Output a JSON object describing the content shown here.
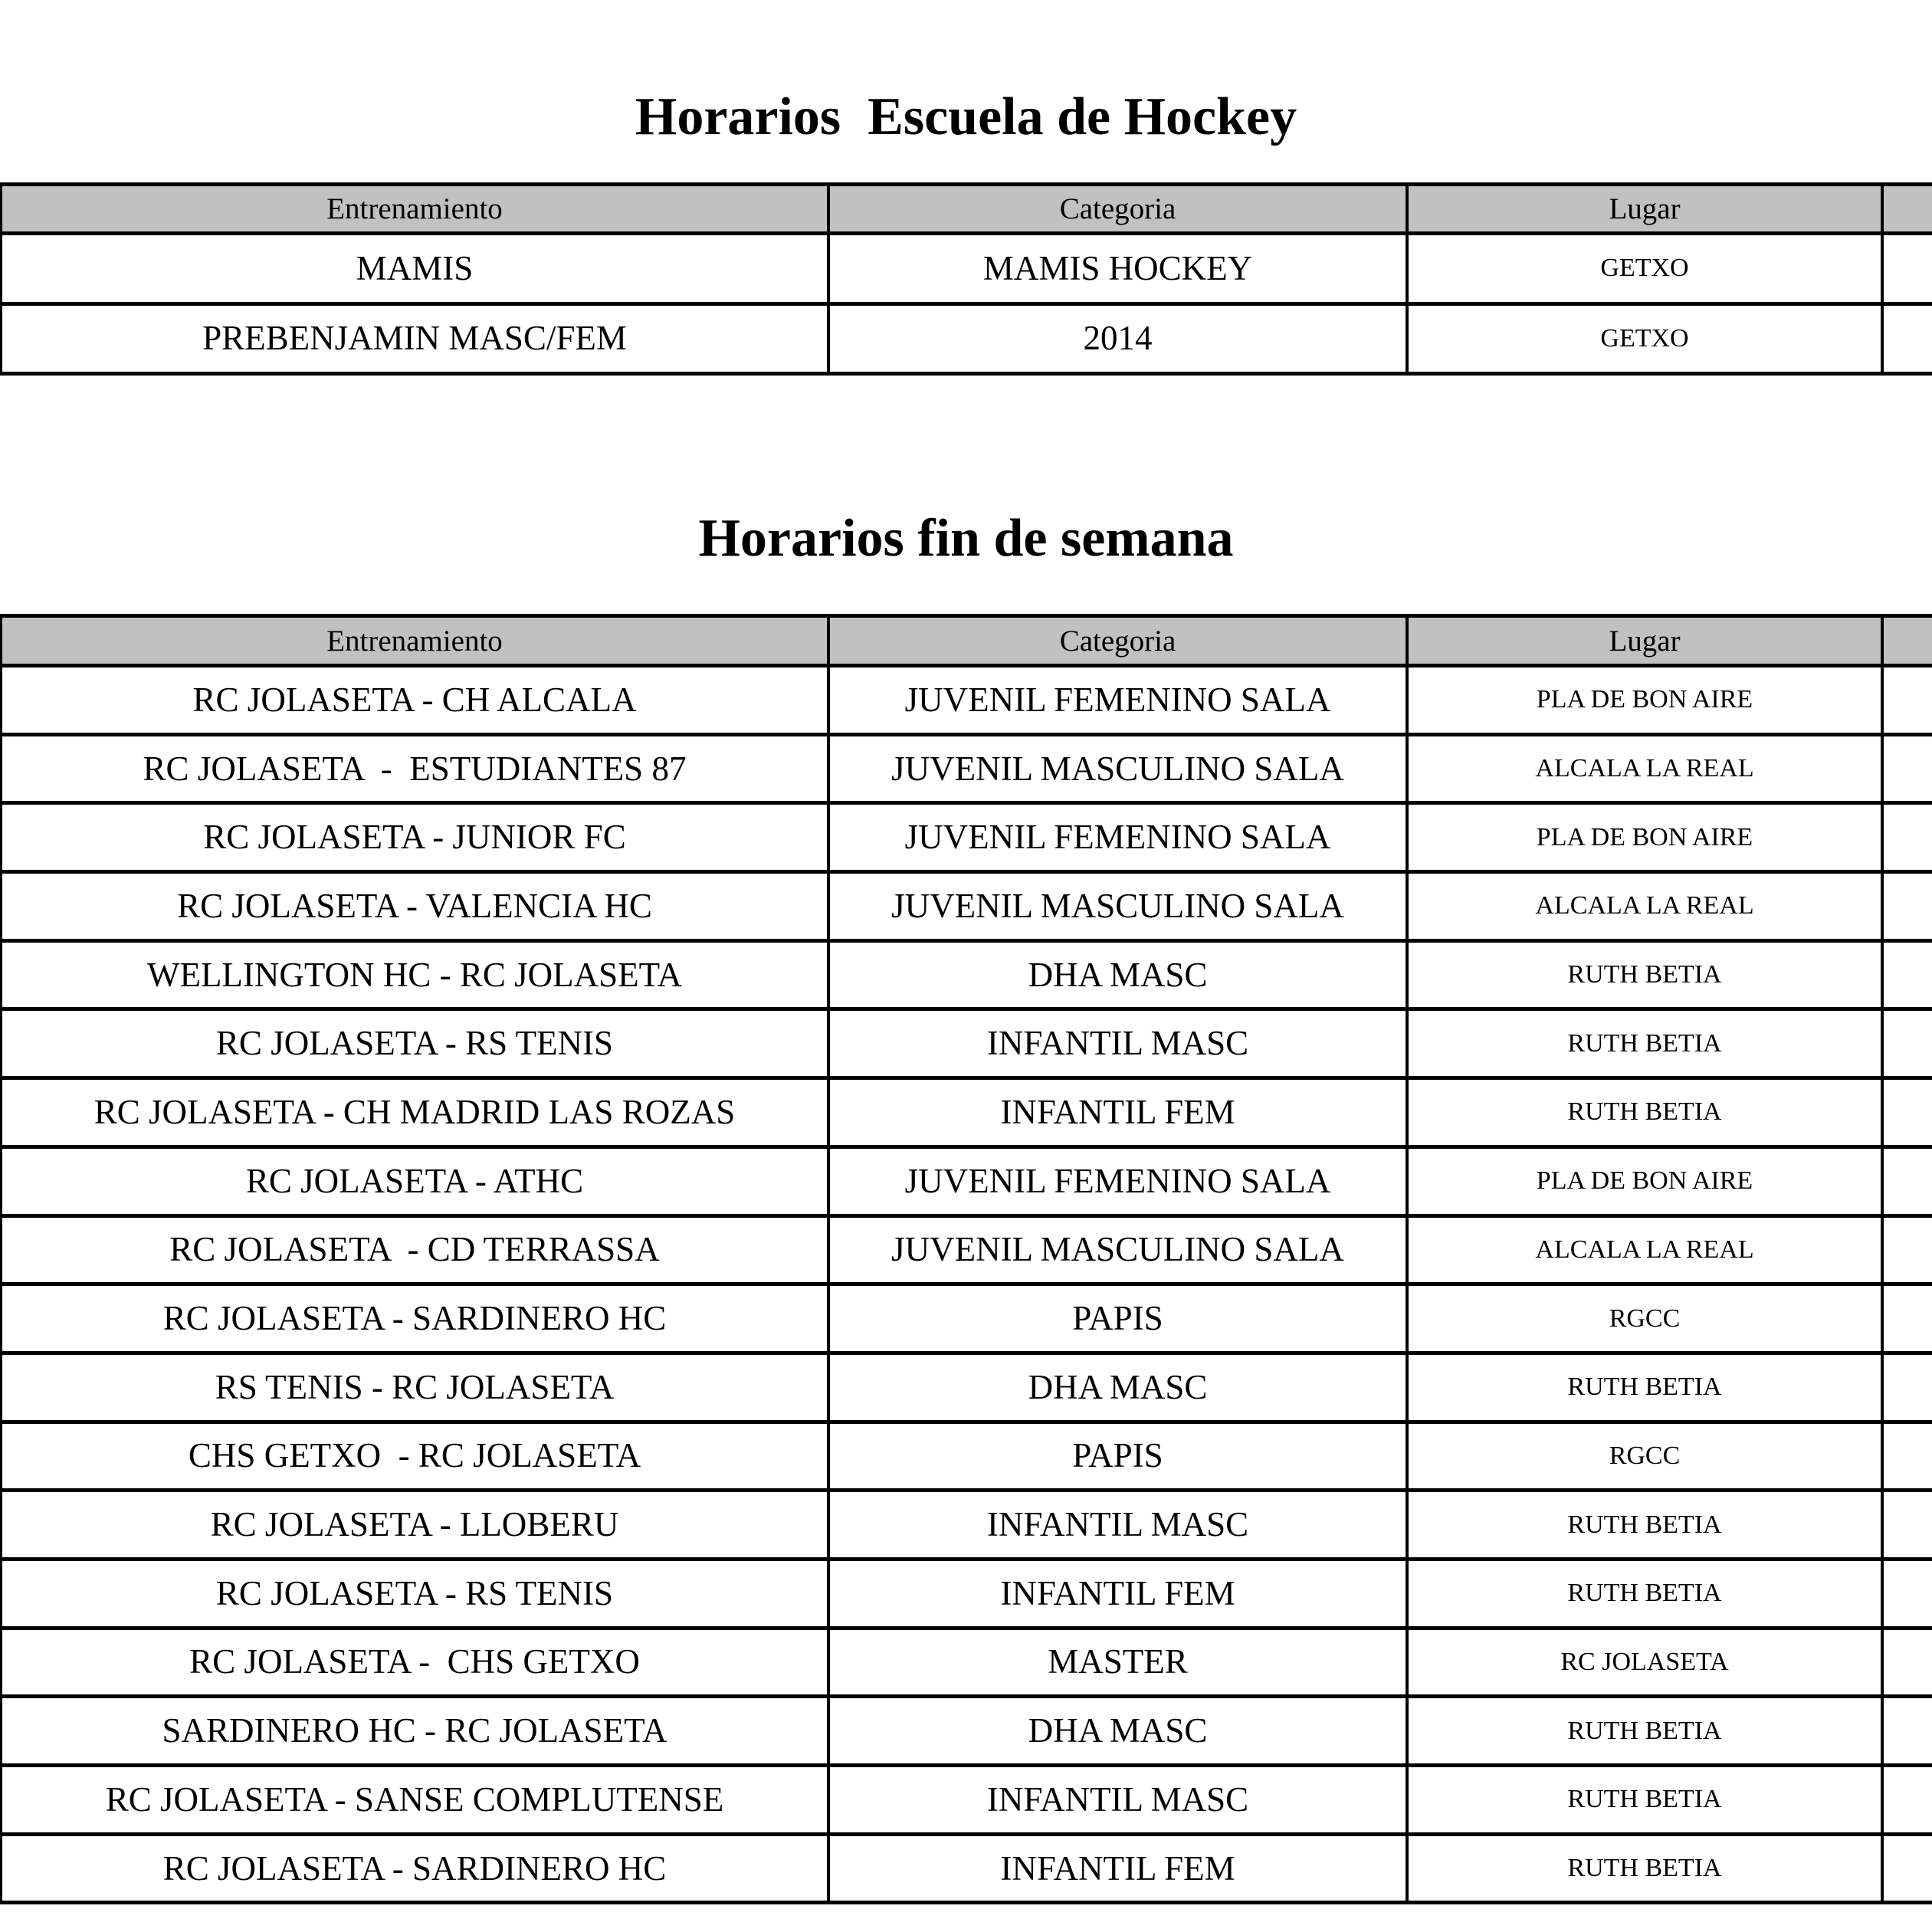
{
  "page": {
    "background_color": "#ffffff",
    "header_gray": "#c1c1c1",
    "border_color": "#000000"
  },
  "tables": [
    {
      "title": "Horarios  Escuela de Hockey",
      "columns": [
        "Entrenamiento",
        "Categoria",
        "Lugar",
        ""
      ],
      "rows": [
        [
          "MAMIS",
          "MAMIS HOCKEY",
          "GETXO",
          ""
        ],
        [
          "PREBENJAMIN MASC/FEM",
          "2014",
          "GETXO",
          ""
        ]
      ]
    },
    {
      "title": "Horarios fin de semana",
      "columns": [
        "Entrenamiento",
        "Categoria",
        "Lugar",
        ""
      ],
      "rows": [
        [
          "RC JOLASETA - CH ALCALA",
          "JUVENIL FEMENINO SALA",
          "PLA DE BON AIRE",
          ""
        ],
        [
          "RC JOLASETA  -  ESTUDIANTES 87",
          "JUVENIL MASCULINO SALA",
          "ALCALA LA REAL",
          ""
        ],
        [
          "RC JOLASETA - JUNIOR FC",
          "JUVENIL FEMENINO SALA",
          "PLA DE BON AIRE",
          ""
        ],
        [
          "RC JOLASETA - VALENCIA HC",
          "JUVENIL MASCULINO SALA",
          "ALCALA LA REAL",
          ""
        ],
        [
          "WELLINGTON HC - RC JOLASETA",
          "DHA MASC",
          "RUTH BETIA",
          ""
        ],
        [
          "RC JOLASETA - RS TENIS",
          "INFANTIL MASC",
          "RUTH BETIA",
          ""
        ],
        [
          "RC JOLASETA - CH MADRID LAS ROZAS",
          "INFANTIL FEM",
          "RUTH BETIA",
          ""
        ],
        [
          "RC JOLASETA - ATHC",
          "JUVENIL FEMENINO SALA",
          "PLA DE BON AIRE",
          ""
        ],
        [
          "RC JOLASETA  - CD TERRASSA",
          "JUVENIL MASCULINO SALA",
          "ALCALA LA REAL",
          ""
        ],
        [
          "RC JOLASETA - SARDINERO HC",
          "PAPIS",
          "RGCC",
          ""
        ],
        [
          "RS TENIS - RC JOLASETA",
          "DHA MASC",
          "RUTH BETIA",
          ""
        ],
        [
          "CHS GETXO  - RC JOLASETA",
          "PAPIS",
          "RGCC",
          ""
        ],
        [
          "RC JOLASETA - LLOBERU",
          "INFANTIL MASC",
          "RUTH BETIA",
          ""
        ],
        [
          "RC JOLASETA - RS TENIS",
          "INFANTIL FEM",
          "RUTH BETIA",
          ""
        ],
        [
          "RC JOLASETA -  CHS GETXO",
          "MASTER",
          "RC JOLASETA",
          ""
        ],
        [
          "SARDINERO HC - RC JOLASETA",
          "DHA MASC",
          "RUTH BETIA",
          ""
        ],
        [
          "RC JOLASETA - SANSE COMPLUTENSE",
          "INFANTIL MASC",
          "RUTH BETIA",
          ""
        ],
        [
          "RC JOLASETA - SARDINERO HC",
          "INFANTIL FEM",
          "RUTH BETIA",
          ""
        ]
      ]
    }
  ]
}
